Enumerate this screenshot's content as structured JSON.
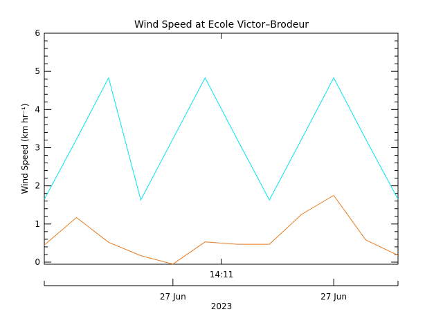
{
  "chart_data": {
    "type": "line",
    "title": "Wind Speed at Ecole Victor–Brodeur",
    "ylabel": "Wind Speed (km hr⁻¹)",
    "ylim": [
      0,
      6
    ],
    "y_ticks": [
      0,
      1,
      2,
      3,
      4,
      5,
      6
    ],
    "x_index_range": [
      0,
      11
    ],
    "top_tick_label": "14:11",
    "x_date_labels": [
      {
        "label": "27 Jun",
        "at": 4
      },
      {
        "label": "27 Jun",
        "at": 9
      }
    ],
    "x_year_label": "2023",
    "grid": false,
    "series": [
      {
        "color": "#00e5f0",
        "values": [
          1.65,
          3.22,
          4.83,
          1.63,
          3.23,
          4.83,
          3.22,
          1.63,
          3.22,
          4.83,
          3.22,
          1.65
        ]
      },
      {
        "color": "#e87a1e",
        "values": [
          0.45,
          1.17,
          0.52,
          0.17,
          -0.05,
          0.53,
          0.47,
          0.47,
          1.25,
          1.75,
          0.58,
          0.18
        ]
      }
    ]
  }
}
